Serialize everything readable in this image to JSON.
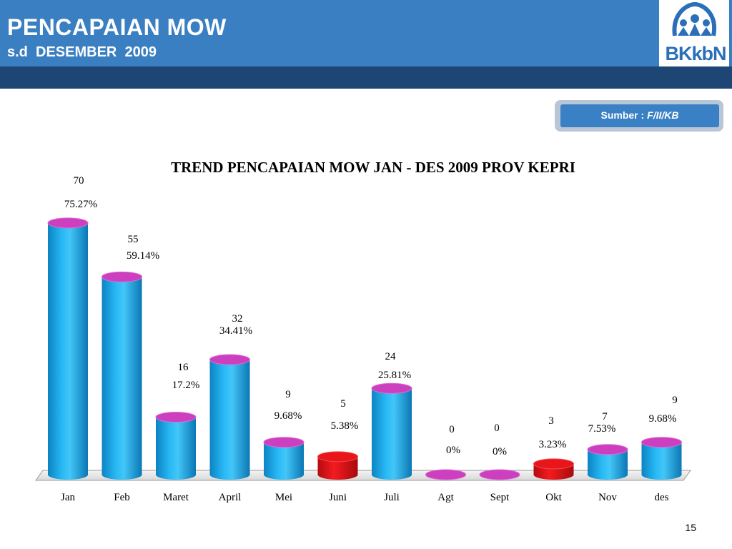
{
  "header": {
    "title": "PENCAPAIAN MOW",
    "subtitle": "s.d  DESEMBER  2009",
    "logo_text": "BKkbN"
  },
  "source": {
    "label": "Sumber :",
    "value": "F/II/KB"
  },
  "page_number": "15",
  "colors": {
    "header_blue": "#3a7fc1",
    "header_dark": "#1e4675",
    "bar_blue": "#1aa6e6",
    "bar_red": "#e8161b",
    "bar_top": "#cc3fbf"
  },
  "chart_data": {
    "type": "bar",
    "title": "TREND PENCAPAIAN MOW JAN - DES 2009 PROV KEPRI",
    "categories": [
      "Jan",
      "Feb",
      "Maret",
      "April",
      "Mei",
      "Juni",
      "Juli",
      "Agt",
      "Sept",
      "Okt",
      "Nov",
      "des"
    ],
    "values": [
      70,
      55,
      16,
      32,
      9,
      5,
      24,
      0,
      0,
      3,
      7,
      9
    ],
    "value_labels": [
      "70",
      "55",
      "16",
      "32",
      "9",
      "5",
      "24",
      "0",
      "0",
      "3",
      "7",
      "9"
    ],
    "percent_labels": [
      "75.27%",
      "59.14%",
      "17.2%",
      "34.41%",
      "9.68%",
      "5.38%",
      "25.81%",
      "0%",
      "0%",
      "3.23%",
      "7.53%",
      "9.68%"
    ],
    "bar_colors": [
      "blue",
      "blue",
      "blue",
      "blue",
      "blue",
      "red",
      "blue",
      "blue",
      "blue",
      "red",
      "blue",
      "blue"
    ],
    "style": "3d-cylinder",
    "grid": false,
    "legend": "none"
  }
}
